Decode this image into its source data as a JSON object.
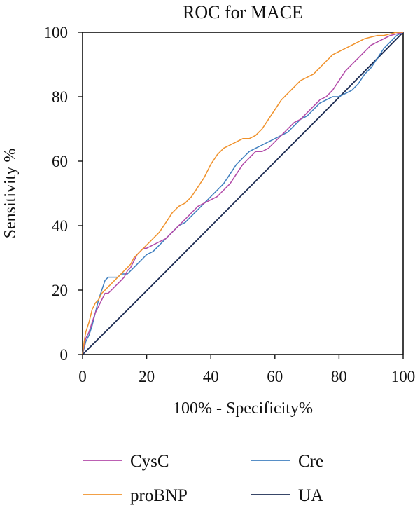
{
  "chart_data": {
    "type": "line",
    "title": "ROC for MACE",
    "xlabel": "100% - Specificity%",
    "ylabel": "Sensitivity %",
    "xlim": [
      0,
      100
    ],
    "ylim": [
      0,
      100
    ],
    "xticks": [
      0,
      20,
      40,
      60,
      80,
      100
    ],
    "yticks": [
      0,
      20,
      40,
      60,
      80,
      100
    ],
    "grid": false,
    "legend_position": "bottom",
    "series": [
      {
        "name": "CysC",
        "color": "#b24aa8",
        "points": [
          [
            0,
            0
          ],
          [
            0.5,
            3
          ],
          [
            1,
            5
          ],
          [
            2,
            7
          ],
          [
            3,
            10
          ],
          [
            4,
            13
          ],
          [
            5,
            15
          ],
          [
            6,
            17
          ],
          [
            7,
            19
          ],
          [
            8,
            19
          ],
          [
            9,
            20
          ],
          [
            10,
            21
          ],
          [
            11,
            22
          ],
          [
            12,
            23
          ],
          [
            13,
            24
          ],
          [
            14,
            26
          ],
          [
            15,
            27
          ],
          [
            16,
            29
          ],
          [
            17,
            31
          ],
          [
            18,
            32
          ],
          [
            19,
            33
          ],
          [
            20,
            33
          ],
          [
            22,
            34
          ],
          [
            24,
            35
          ],
          [
            26,
            36
          ],
          [
            28,
            38
          ],
          [
            30,
            40
          ],
          [
            32,
            42
          ],
          [
            34,
            44
          ],
          [
            36,
            46
          ],
          [
            38,
            47
          ],
          [
            40,
            48
          ],
          [
            42,
            49
          ],
          [
            44,
            51
          ],
          [
            46,
            53
          ],
          [
            48,
            56
          ],
          [
            50,
            59
          ],
          [
            52,
            61
          ],
          [
            54,
            63
          ],
          [
            56,
            63
          ],
          [
            58,
            64
          ],
          [
            60,
            66
          ],
          [
            62,
            68
          ],
          [
            64,
            70
          ],
          [
            66,
            72
          ],
          [
            68,
            73
          ],
          [
            70,
            75
          ],
          [
            72,
            77
          ],
          [
            74,
            79
          ],
          [
            76,
            80
          ],
          [
            78,
            82
          ],
          [
            80,
            85
          ],
          [
            82,
            88
          ],
          [
            84,
            90
          ],
          [
            86,
            92
          ],
          [
            88,
            94
          ],
          [
            90,
            96
          ],
          [
            92,
            97
          ],
          [
            94,
            98
          ],
          [
            96,
            99
          ],
          [
            98,
            99.5
          ],
          [
            100,
            100
          ]
        ]
      },
      {
        "name": "proBNP",
        "color": "#f0922c",
        "points": [
          [
            0,
            0
          ],
          [
            0.5,
            4
          ],
          [
            1,
            7
          ],
          [
            2,
            10
          ],
          [
            3,
            14
          ],
          [
            4,
            16
          ],
          [
            5,
            17
          ],
          [
            6,
            19
          ],
          [
            7,
            20
          ],
          [
            8,
            21
          ],
          [
            9,
            22
          ],
          [
            10,
            23
          ],
          [
            11,
            24
          ],
          [
            12,
            25
          ],
          [
            13,
            26
          ],
          [
            14,
            27
          ],
          [
            15,
            28
          ],
          [
            16,
            30
          ],
          [
            17,
            31
          ],
          [
            18,
            32
          ],
          [
            19,
            33
          ],
          [
            20,
            34
          ],
          [
            22,
            36
          ],
          [
            24,
            38
          ],
          [
            26,
            41
          ],
          [
            28,
            44
          ],
          [
            30,
            46
          ],
          [
            32,
            47
          ],
          [
            34,
            49
          ],
          [
            36,
            52
          ],
          [
            38,
            55
          ],
          [
            40,
            59
          ],
          [
            42,
            62
          ],
          [
            44,
            64
          ],
          [
            46,
            65
          ],
          [
            48,
            66
          ],
          [
            50,
            67
          ],
          [
            52,
            67
          ],
          [
            54,
            68
          ],
          [
            56,
            70
          ],
          [
            58,
            73
          ],
          [
            60,
            76
          ],
          [
            62,
            79
          ],
          [
            64,
            81
          ],
          [
            66,
            83
          ],
          [
            68,
            85
          ],
          [
            70,
            86
          ],
          [
            72,
            87
          ],
          [
            74,
            89
          ],
          [
            76,
            91
          ],
          [
            78,
            93
          ],
          [
            80,
            94
          ],
          [
            82,
            95
          ],
          [
            84,
            96
          ],
          [
            86,
            97
          ],
          [
            88,
            98
          ],
          [
            90,
            98.5
          ],
          [
            92,
            99
          ],
          [
            94,
            99
          ],
          [
            96,
            99.5
          ],
          [
            98,
            100
          ],
          [
            100,
            100
          ]
        ]
      },
      {
        "name": "Cre",
        "color": "#3f7fbf",
        "points": [
          [
            0,
            0
          ],
          [
            0.5,
            2
          ],
          [
            1,
            4
          ],
          [
            2,
            6
          ],
          [
            3,
            9
          ],
          [
            4,
            13
          ],
          [
            5,
            17
          ],
          [
            6,
            20
          ],
          [
            7,
            23
          ],
          [
            8,
            24
          ],
          [
            9,
            24
          ],
          [
            10,
            24
          ],
          [
            11,
            24
          ],
          [
            12,
            25
          ],
          [
            13,
            25
          ],
          [
            14,
            25
          ],
          [
            15,
            26
          ],
          [
            16,
            27
          ],
          [
            17,
            28
          ],
          [
            18,
            29
          ],
          [
            19,
            30
          ],
          [
            20,
            31
          ],
          [
            22,
            32
          ],
          [
            24,
            34
          ],
          [
            26,
            36
          ],
          [
            28,
            38
          ],
          [
            30,
            40
          ],
          [
            32,
            41
          ],
          [
            34,
            43
          ],
          [
            36,
            45
          ],
          [
            38,
            47
          ],
          [
            40,
            49
          ],
          [
            42,
            51
          ],
          [
            44,
            53
          ],
          [
            46,
            56
          ],
          [
            48,
            59
          ],
          [
            50,
            61
          ],
          [
            52,
            63
          ],
          [
            54,
            64
          ],
          [
            56,
            65
          ],
          [
            58,
            66
          ],
          [
            60,
            67
          ],
          [
            62,
            68
          ],
          [
            64,
            69
          ],
          [
            66,
            71
          ],
          [
            68,
            73
          ],
          [
            70,
            74
          ],
          [
            72,
            76
          ],
          [
            74,
            78
          ],
          [
            76,
            79
          ],
          [
            78,
            80
          ],
          [
            80,
            80
          ],
          [
            82,
            81
          ],
          [
            84,
            82
          ],
          [
            86,
            84
          ],
          [
            88,
            87
          ],
          [
            90,
            89
          ],
          [
            92,
            92
          ],
          [
            94,
            95
          ],
          [
            96,
            97
          ],
          [
            98,
            99
          ],
          [
            100,
            100
          ]
        ]
      },
      {
        "name": "UA",
        "color": "#1c2b52",
        "points": [
          [
            0,
            0
          ],
          [
            20,
            19.8
          ],
          [
            40,
            39.8
          ],
          [
            60,
            59.8
          ],
          [
            80,
            79.8
          ],
          [
            100,
            100
          ]
        ]
      }
    ]
  }
}
